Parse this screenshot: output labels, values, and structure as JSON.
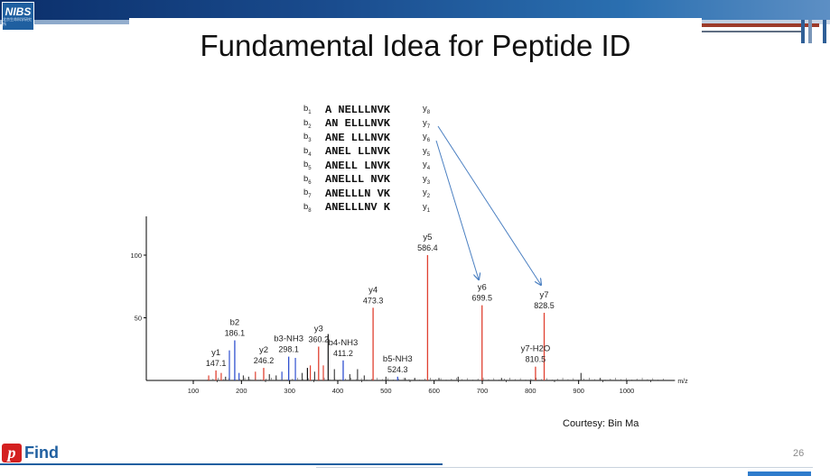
{
  "header": {
    "logo_text": "NIBS",
    "logo_subtext": "北京生命科学研究所"
  },
  "slide": {
    "title": "Fundamental Idea for Peptide ID",
    "courtesy": "Courtesy:  Bin Ma",
    "page_number": "26",
    "footer_logo_letter": "p",
    "footer_logo_text": "Find"
  },
  "peptides": [
    {
      "b": "b",
      "bn": "1",
      "seq": "A NELLLNVK",
      "y": "y",
      "yn": "8"
    },
    {
      "b": "b",
      "bn": "2",
      "seq": "AN ELLLNVK",
      "y": "y",
      "yn": "7"
    },
    {
      "b": "b",
      "bn": "3",
      "seq": "ANE LLLNVK",
      "y": "y",
      "yn": "6"
    },
    {
      "b": "b",
      "bn": "4",
      "seq": "ANEL LLNVK",
      "y": "y",
      "yn": "5"
    },
    {
      "b": "b",
      "bn": "5",
      "seq": "ANELL LNVK",
      "y": "y",
      "yn": "4"
    },
    {
      "b": "b",
      "bn": "6",
      "seq": "ANELLL NVK",
      "y": "y",
      "yn": "3"
    },
    {
      "b": "b",
      "bn": "7",
      "seq": "ANELLLN VK",
      "y": "y",
      "yn": "2"
    },
    {
      "b": "b",
      "bn": "8",
      "seq": "ANELLLNV K",
      "y": "y",
      "yn": "1"
    }
  ],
  "chart_data": {
    "type": "bar",
    "xlim": [
      0,
      1100
    ],
    "ylim": [
      0,
      130
    ],
    "x_ticks": [
      100,
      200,
      300,
      400,
      500,
      600,
      700,
      800,
      900,
      1000
    ],
    "y_ticks": [
      50,
      100
    ],
    "xunit": "m/z",
    "labeled_peaks": [
      {
        "name": "y1",
        "value": "147.1",
        "mz": 147.1,
        "intensity": 8,
        "color": "#e04030"
      },
      {
        "name": "b2",
        "value": "186.1",
        "mz": 186.1,
        "intensity": 32,
        "color": "#3050d0"
      },
      {
        "name": "y2",
        "value": "246.2",
        "mz": 246.2,
        "intensity": 10,
        "color": "#e04030"
      },
      {
        "name": "b3-NH3",
        "value": "298.1",
        "mz": 298.1,
        "intensity": 19,
        "color": "#3050d0"
      },
      {
        "name": "y3",
        "value": "360.2",
        "mz": 360.2,
        "intensity": 27,
        "color": "#e04030"
      },
      {
        "name": "b4-NH3",
        "value": "411.2",
        "mz": 411.2,
        "intensity": 16,
        "color": "#3050d0"
      },
      {
        "name": "y4",
        "value": "473.3",
        "mz": 473.3,
        "intensity": 58,
        "color": "#e04030"
      },
      {
        "name": "b5-NH3",
        "value": "524.3",
        "mz": 524.3,
        "intensity": 3,
        "color": "#3050d0"
      },
      {
        "name": "y5",
        "value": "586.4",
        "mz": 586.4,
        "intensity": 100,
        "color": "#e04030"
      },
      {
        "name": "y6",
        "value": "699.5",
        "mz": 699.5,
        "intensity": 60,
        "color": "#e04030"
      },
      {
        "name": "y7-H2O",
        "value": "810.5",
        "mz": 810.5,
        "intensity": 11,
        "color": "#e04030"
      },
      {
        "name": "y7",
        "value": "828.5",
        "mz": 828.5,
        "intensity": 54,
        "color": "#e04030"
      }
    ],
    "unlabeled_peaks": [
      {
        "mz": 132,
        "intensity": 4,
        "color": "#e04030"
      },
      {
        "mz": 158,
        "intensity": 6,
        "color": "#e04030"
      },
      {
        "mz": 167,
        "intensity": 3,
        "color": "#444444"
      },
      {
        "mz": 175,
        "intensity": 24,
        "color": "#3050d0"
      },
      {
        "mz": 195,
        "intensity": 6,
        "color": "#3050d0"
      },
      {
        "mz": 204,
        "intensity": 4,
        "color": "#444444"
      },
      {
        "mz": 215,
        "intensity": 3,
        "color": "#444444"
      },
      {
        "mz": 229,
        "intensity": 7,
        "color": "#e04030"
      },
      {
        "mz": 258,
        "intensity": 5,
        "color": "#444444"
      },
      {
        "mz": 272,
        "intensity": 4,
        "color": "#444444"
      },
      {
        "mz": 284,
        "intensity": 7,
        "color": "#3050d0"
      },
      {
        "mz": 312,
        "intensity": 18,
        "color": "#3050d0"
      },
      {
        "mz": 326,
        "intensity": 6,
        "color": "#444444"
      },
      {
        "mz": 337,
        "intensity": 10,
        "color": "#111111"
      },
      {
        "mz": 343,
        "intensity": 12,
        "color": "#e04030"
      },
      {
        "mz": 352,
        "intensity": 7,
        "color": "#444444"
      },
      {
        "mz": 370,
        "intensity": 12,
        "color": "#e04030"
      },
      {
        "mz": 380,
        "intensity": 37,
        "color": "#111111"
      },
      {
        "mz": 393,
        "intensity": 9,
        "color": "#444444"
      },
      {
        "mz": 425,
        "intensity": 5,
        "color": "#444444"
      },
      {
        "mz": 441,
        "intensity": 9,
        "color": "#444444"
      },
      {
        "mz": 455,
        "intensity": 4,
        "color": "#444444"
      },
      {
        "mz": 500,
        "intensity": 3,
        "color": "#444444"
      },
      {
        "mz": 540,
        "intensity": 2,
        "color": "#444444"
      },
      {
        "mz": 560,
        "intensity": 2,
        "color": "#444444"
      },
      {
        "mz": 610,
        "intensity": 2,
        "color": "#444444"
      },
      {
        "mz": 650,
        "intensity": 3,
        "color": "#444444"
      },
      {
        "mz": 740,
        "intensity": 2,
        "color": "#444444"
      },
      {
        "mz": 905,
        "intensity": 6,
        "color": "#444444"
      },
      {
        "mz": 945,
        "intensity": 2,
        "color": "#444444"
      }
    ]
  }
}
